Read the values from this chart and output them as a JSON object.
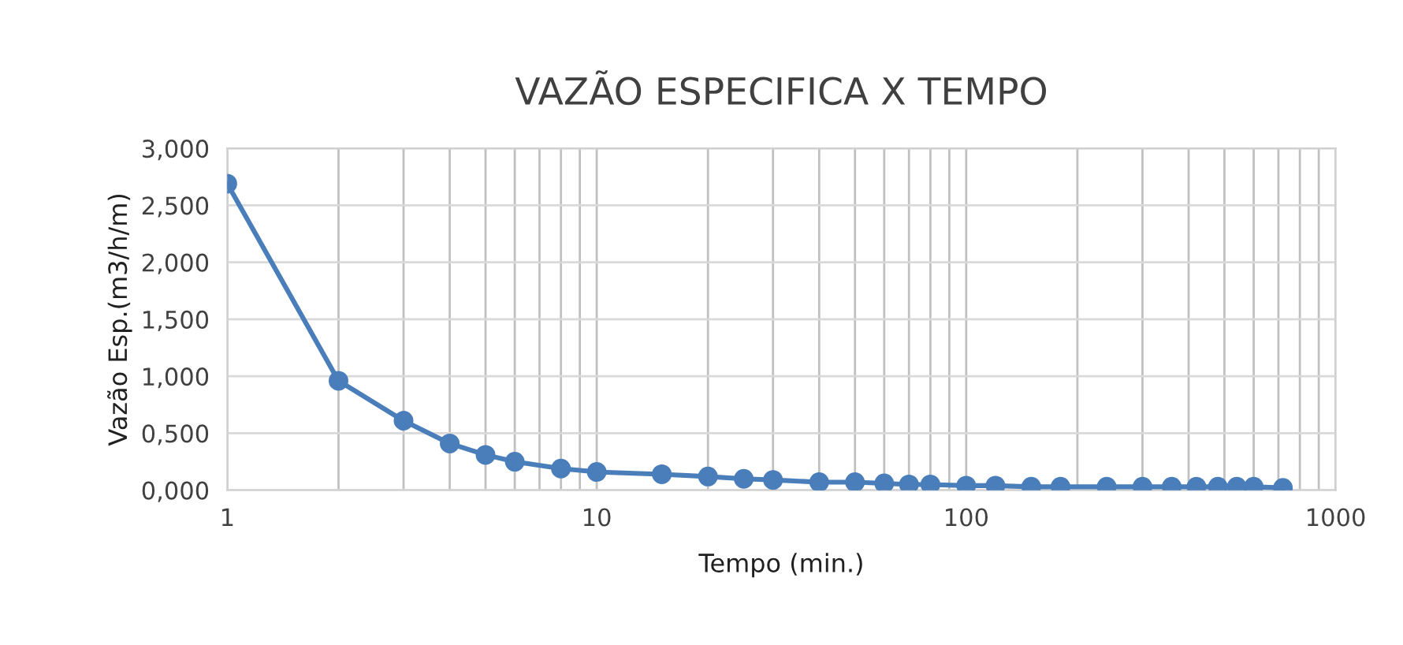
{
  "chart_data": {
    "type": "line",
    "title": "VAZÃO ESPECIFICA X TEMPO",
    "xlabel": "Tempo (min.)",
    "ylabel": "Vazão Esp.(m3/h/m)",
    "x": [
      1,
      2,
      3,
      4,
      5,
      6,
      8,
      10,
      15,
      20,
      25,
      30,
      40,
      50,
      60,
      70,
      80,
      100,
      120,
      150,
      180,
      240,
      300,
      360,
      420,
      480,
      540,
      600,
      720
    ],
    "series": [
      {
        "color": "#4a7ebb",
        "values": [
          2.69,
          0.96,
          0.61,
          0.41,
          0.31,
          0.25,
          0.19,
          0.16,
          0.14,
          0.12,
          0.1,
          0.09,
          0.07,
          0.07,
          0.06,
          0.05,
          0.05,
          0.04,
          0.04,
          0.03,
          0.03,
          0.03,
          0.03,
          0.03,
          0.03,
          0.03,
          0.03,
          0.03,
          0.02
        ]
      }
    ],
    "log": "x",
    "xlim": [
      1,
      1000
    ],
    "xticks": [
      1,
      10,
      100,
      1000
    ],
    "ylim": [
      0,
      3
    ],
    "yticks": [
      {
        "value": 0,
        "label": "0,000"
      },
      {
        "value": 0.5,
        "label": "0,500"
      },
      {
        "value": 1,
        "label": "1,000"
      },
      {
        "value": 1.5,
        "label": "1,500"
      },
      {
        "value": 2,
        "label": "2,000"
      },
      {
        "value": 2.5,
        "label": "2,500"
      },
      {
        "value": 3,
        "label": "3,000"
      }
    ],
    "grid": true,
    "marker": "circle",
    "line_style": "solid",
    "legend": false
  }
}
